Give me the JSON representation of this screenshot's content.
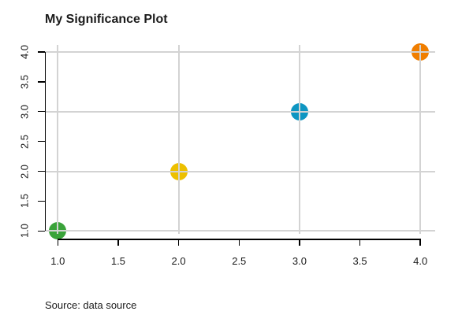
{
  "chart_data": {
    "type": "scatter",
    "title": "My Significance Plot",
    "source_note": "Source: data source",
    "xlabel": "",
    "ylabel": "",
    "xlim": [
      1.0,
      4.0
    ],
    "ylim": [
      1.0,
      4.0
    ],
    "x_tick_labels": [
      "1.0",
      "1.5",
      "2.0",
      "2.5",
      "3.0",
      "3.5",
      "4.0"
    ],
    "y_tick_labels": [
      "1.0",
      "1.5",
      "2.0",
      "2.5",
      "3.0",
      "3.5",
      "4.0"
    ],
    "x_tick_values": [
      1.0,
      1.5,
      2.0,
      2.5,
      3.0,
      3.5,
      4.0
    ],
    "y_tick_values": [
      1.0,
      1.5,
      2.0,
      2.5,
      3.0,
      3.5,
      4.0
    ],
    "grid_on": true,
    "grid_x": [
      1,
      2,
      3,
      4
    ],
    "grid_y": [
      1,
      2,
      3,
      4
    ],
    "grid_over_points": true,
    "legend": "none",
    "points": [
      {
        "x": 1,
        "y": 1,
        "color": "#3aa33a"
      },
      {
        "x": 2,
        "y": 2,
        "color": "#edc000"
      },
      {
        "x": 3,
        "y": 3,
        "color": "#0e96c2"
      },
      {
        "x": 4,
        "y": 4,
        "color": "#f07e00"
      }
    ],
    "colors": {
      "grid": "#d3d3d3",
      "axis": "#000000",
      "text": "#1a1a1a",
      "background": "#ffffff"
    }
  }
}
